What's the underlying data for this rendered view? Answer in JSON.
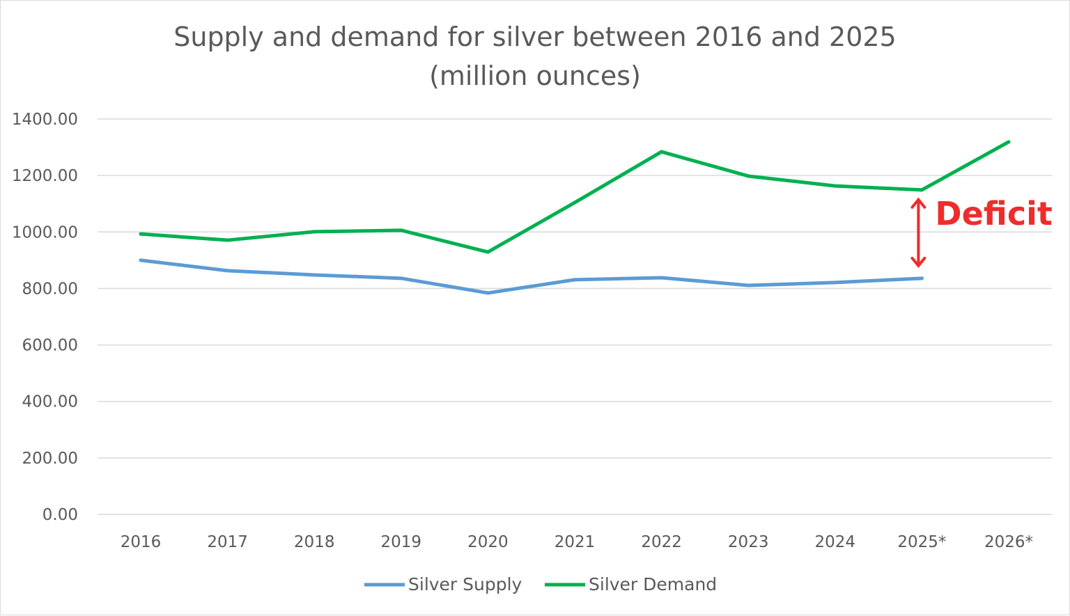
{
  "chart_data": {
    "type": "line",
    "title": "Supply and demand for silver between 2016 and 2025",
    "subtitle": "(million ounces)",
    "categories": [
      "2016",
      "2017",
      "2018",
      "2019",
      "2020",
      "2021",
      "2022",
      "2023",
      "2024",
      "2025*",
      "2026*"
    ],
    "ylim": [
      0,
      1400
    ],
    "yticks": [
      "0.00",
      "200.00",
      "400.00",
      "600.00",
      "800.00",
      "1000.00",
      "1200.00",
      "1400.00"
    ],
    "grid": true,
    "legend_position": "bottom",
    "series": [
      {
        "name": "Silver Supply",
        "color": "#5b9bd5",
        "values": [
          900,
          863,
          848,
          836,
          784,
          831,
          838,
          811,
          821,
          836,
          null
        ]
      },
      {
        "name": "Silver Demand",
        "color": "#00b050",
        "values": [
          993,
          971,
          1001,
          1006,
          929,
          1104,
          1284,
          1198,
          1163,
          1149,
          1319
        ]
      }
    ],
    "annotation": {
      "text": "Deficit",
      "category": "2025*",
      "color": "#ee2c2c"
    }
  }
}
